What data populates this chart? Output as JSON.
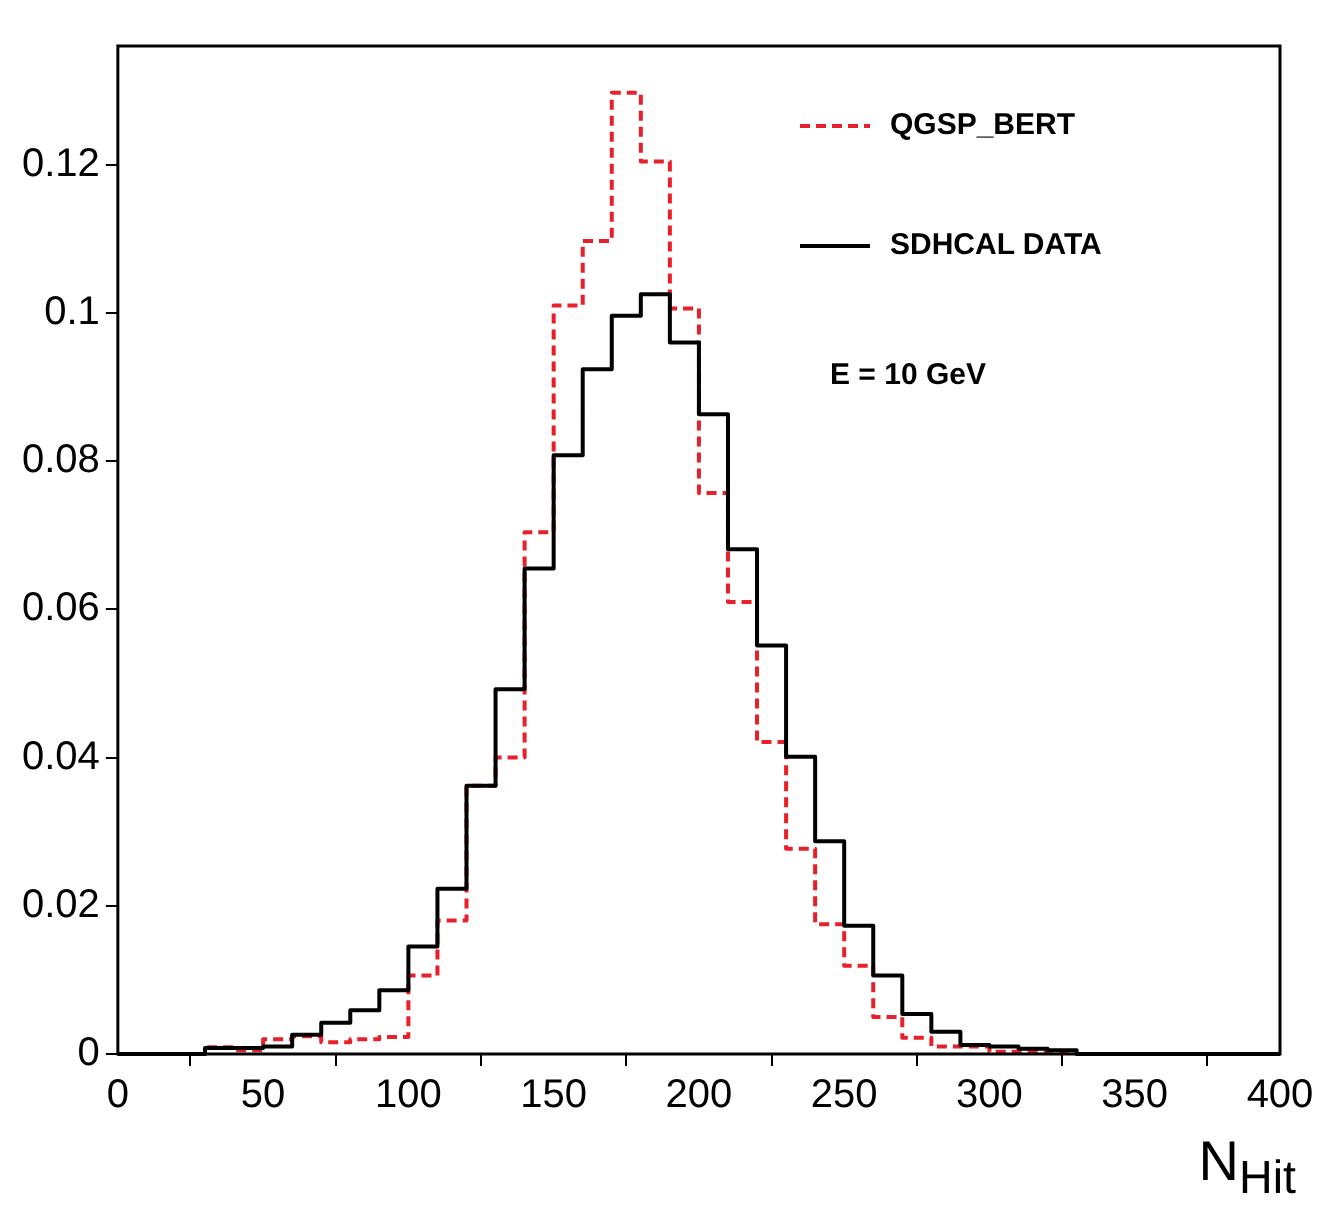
{
  "chart_data": {
    "type": "histogram",
    "xlabel": "N$_{Hit}$",
    "annotations": [
      "E = 10 GeV"
    ],
    "bins": [
      0,
      10,
      20,
      30,
      40,
      50,
      60,
      70,
      80,
      90,
      100,
      110,
      120,
      130,
      140,
      150,
      160,
      170,
      180,
      190,
      200,
      210,
      220,
      230,
      240,
      250,
      260,
      270,
      280,
      290,
      300,
      310,
      320,
      330,
      340,
      350,
      360,
      370,
      380,
      390,
      400
    ],
    "series": [
      {
        "name": "QGSP_BERT",
        "color": "#e8202a",
        "line_style": "dashed",
        "values": [
          0,
          0,
          0,
          0.0009,
          0.0005,
          0.002,
          0.0024,
          0.0016,
          0.002,
          0.0023,
          0.0106,
          0.018,
          0.0362,
          0.04,
          0.0704,
          0.101,
          0.1097,
          0.1297,
          0.1204,
          0.1006,
          0.0757,
          0.061,
          0.0421,
          0.0277,
          0.0175,
          0.0119,
          0.005,
          0.0022,
          0.001,
          0.001,
          0.0003,
          0.0003,
          0.0002,
          0,
          0,
          0,
          0,
          0,
          0,
          0
        ]
      },
      {
        "name": "SDHCAL DATA",
        "color": "#000000",
        "line_style": "solid",
        "values": [
          0,
          0,
          0,
          0.0008,
          0.0008,
          0.001,
          0.0026,
          0.0042,
          0.0059,
          0.0086,
          0.0145,
          0.0223,
          0.0362,
          0.0492,
          0.0655,
          0.0808,
          0.0924,
          0.0996,
          0.1025,
          0.096,
          0.0863,
          0.0681,
          0.0551,
          0.0401,
          0.0287,
          0.0173,
          0.0106,
          0.0054,
          0.003,
          0.0012,
          0.001,
          0.0007,
          0.0005,
          0,
          0,
          0,
          0,
          0,
          0,
          0
        ]
      }
    ],
    "xlim": [
      0,
      400
    ],
    "xticks": [
      0,
      50,
      100,
      150,
      200,
      250,
      300,
      350,
      400
    ],
    "ylim": [
      0,
      0.136
    ],
    "yticks": [
      0,
      0.02,
      0.04,
      0.06,
      0.08,
      0.1,
      0.12
    ],
    "legend": "top right",
    "grid": false
  }
}
